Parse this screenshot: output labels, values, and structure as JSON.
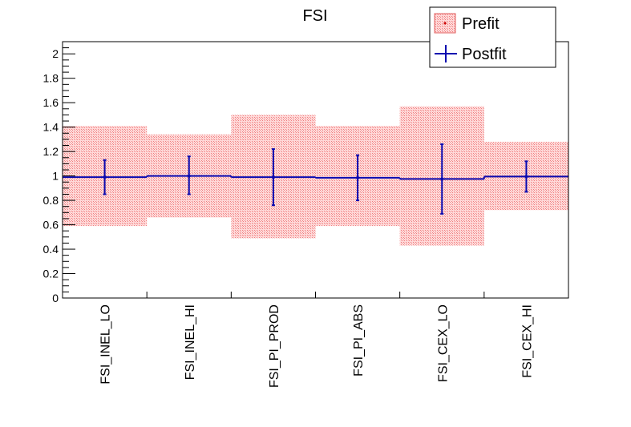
{
  "colors": {
    "prefit_fill": "#ff9999",
    "prefit_hatch": "#e06060",
    "postfit": "#0a0ab0",
    "axis": "#000000"
  },
  "chart_data": {
    "type": "bar",
    "title": "FSI",
    "xlabel": "",
    "ylabel": "",
    "ylim": [
      0,
      2.1
    ],
    "yticks": [
      0,
      0.2,
      0.4,
      0.6,
      0.8,
      1,
      1.2,
      1.4,
      1.6,
      1.8,
      2
    ],
    "ytick_labels": [
      "0",
      "0.2",
      "0.4",
      "0.6",
      "0.8",
      "1",
      "1.2",
      "1.4",
      "1.6",
      "1.8",
      "2"
    ],
    "categories": [
      "FSI_INEL_LO",
      "FSI_INEL_HI",
      "FSI_PI_PROD",
      "FSI_PI_ABS",
      "FSI_CEX_LO",
      "FSI_CEX_HI"
    ],
    "legend_position": "top-right",
    "series": [
      {
        "name": "Prefit",
        "style": "band",
        "values": [
          1.0,
          1.0,
          1.0,
          1.0,
          1.0,
          1.0
        ],
        "low": [
          0.59,
          0.66,
          0.49,
          0.59,
          0.43,
          0.72
        ],
        "high": [
          1.41,
          1.34,
          1.5,
          1.41,
          1.57,
          1.28
        ]
      },
      {
        "name": "Postfit",
        "style": "errorbar",
        "values": [
          0.99,
          1.0,
          0.99,
          0.985,
          0.975,
          0.995
        ],
        "low": [
          0.85,
          0.85,
          0.76,
          0.8,
          0.69,
          0.87
        ],
        "high": [
          1.13,
          1.16,
          1.22,
          1.17,
          1.26,
          1.12
        ]
      }
    ],
    "grid": false
  }
}
